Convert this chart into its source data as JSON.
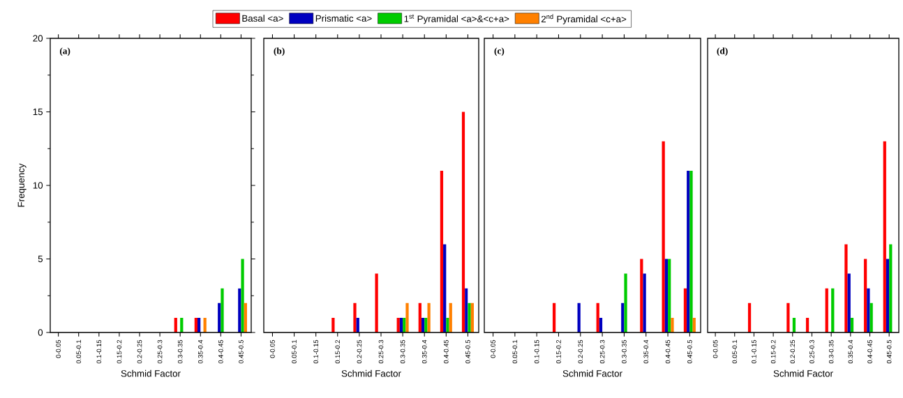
{
  "chart_data": [
    {
      "type": "bar",
      "title": "(a)",
      "xlabel": "Schmid Factor",
      "ylabel": "Frequency",
      "categories": [
        "0-0.05",
        "0.05-0.1",
        "0.1-0.15",
        "0.15-0.2",
        "0.2-0.25",
        "0.25-0.3",
        "0.3-0.35",
        "0.35-0.4",
        "0.4-0.45",
        "0.45-0.5"
      ],
      "ylim": [
        0,
        20
      ],
      "yticks": [
        0,
        5,
        10,
        15,
        20
      ],
      "legend": "top",
      "series": [
        {
          "name": "Basal <a>",
          "color": "#ff0000",
          "values": [
            0,
            0,
            0,
            0,
            0,
            0,
            1,
            1,
            0,
            0
          ]
        },
        {
          "name": "Prismatic <a>",
          "color": "#0000c0",
          "values": [
            0,
            0,
            0,
            0,
            0,
            0,
            0,
            1,
            2,
            3
          ]
        },
        {
          "name": "1$^{st}$ Pyramidal <a>&<c+a>",
          "color": "#00cc00",
          "values": [
            0,
            0,
            0,
            0,
            0,
            0,
            1,
            0,
            3,
            5
          ]
        },
        {
          "name": "2$^{nd}$ Pyramidal <c+a>",
          "color": "#ff8000",
          "values": [
            0,
            0,
            0,
            0,
            0,
            0,
            0,
            1,
            0,
            2
          ]
        }
      ]
    },
    {
      "type": "bar",
      "title": "(b)",
      "xlabel": "Schmid Factor",
      "categories": [
        "0-0.05",
        "0.05-0.1",
        "0.1-0.15",
        "0.15-0.2",
        "0.2-0.25",
        "0.25-0.3",
        "0.3-0.35",
        "0.35-0.4",
        "0.4-0.45",
        "0.45-0.5"
      ],
      "ylim": [
        0,
        20
      ],
      "tick_labels": "x",
      "series": [
        {
          "color": "#ff0000",
          "values": [
            0,
            0,
            0,
            1,
            2,
            4,
            1,
            2,
            11,
            15
          ]
        },
        {
          "color": "#0000c0",
          "values": [
            0,
            0,
            0,
            0,
            1,
            0,
            1,
            1,
            6,
            3
          ]
        },
        {
          "color": "#00cc00",
          "values": [
            0,
            0,
            0,
            0,
            0,
            0,
            1,
            1,
            1,
            2
          ]
        },
        {
          "color": "#ff8000",
          "values": [
            0,
            0,
            0,
            0,
            0,
            0,
            2,
            2,
            2,
            2
          ]
        }
      ]
    },
    {
      "type": "bar",
      "title": "(c)",
      "xlabel": "Schmid Factor",
      "categories": [
        "0-0.05",
        "0.05-0.1",
        "0.1-0.15",
        "0.15-0.2",
        "0.2-0.25",
        "0.25-0.3",
        "0.3-0.35",
        "0.35-0.4",
        "0.4-0.45",
        "0.45-0.5"
      ],
      "ylim": [
        0,
        20
      ],
      "tick_labels": "x",
      "series": [
        {
          "color": "#ff0000",
          "values": [
            0,
            0,
            0,
            2,
            0,
            2,
            0,
            5,
            13,
            3
          ]
        },
        {
          "color": "#0000c0",
          "values": [
            0,
            0,
            0,
            0,
            2,
            1,
            2,
            4,
            5,
            11
          ]
        },
        {
          "color": "#00cc00",
          "values": [
            0,
            0,
            0,
            0,
            0,
            0,
            4,
            0,
            5,
            11
          ]
        },
        {
          "color": "#ff8000",
          "values": [
            0,
            0,
            0,
            0,
            0,
            0,
            0,
            0,
            1,
            1
          ]
        }
      ]
    },
    {
      "type": "bar",
      "title": "(d)",
      "xlabel": "Schmid Factor",
      "categories": [
        "0-0.05",
        "0.05-0.1",
        "0.1-0.15",
        "0.15-0.2",
        "0.2-0.25",
        "0.25-0.3",
        "0.3-0.35",
        "0.35-0.4",
        "0.4-0.45",
        "0.45-0.5"
      ],
      "ylim": [
        0,
        20
      ],
      "tick_labels": "x",
      "series": [
        {
          "color": "#ff0000",
          "values": [
            0,
            0,
            2,
            0,
            2,
            1,
            3,
            6,
            5,
            13
          ]
        },
        {
          "color": "#0000c0",
          "values": [
            0,
            0,
            0,
            0,
            0,
            0,
            0,
            4,
            3,
            5
          ]
        },
        {
          "color": "#00cc00",
          "values": [
            0,
            0,
            0,
            0,
            1,
            0,
            3,
            1,
            2,
            6
          ]
        },
        {
          "color": "#ff8000",
          "values": [
            0,
            0,
            0,
            0,
            0,
            0,
            0,
            0,
            0,
            0
          ]
        }
      ]
    }
  ]
}
